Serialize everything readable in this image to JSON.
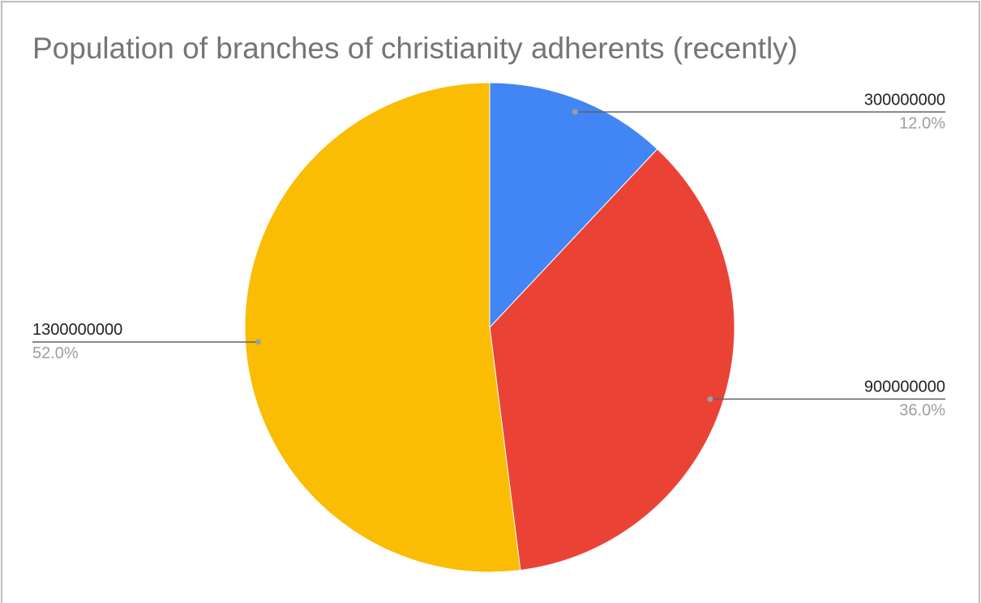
{
  "chart_data": {
    "type": "pie",
    "title": "Population of branches of christianity adherents (recently)",
    "values": [
      300000000,
      900000000,
      1300000000
    ],
    "percent_labels": [
      "12.0%",
      "36.0%",
      "52.0%"
    ],
    "colors": [
      "#4285f4",
      "#ea4335",
      "#fbbc04"
    ]
  }
}
